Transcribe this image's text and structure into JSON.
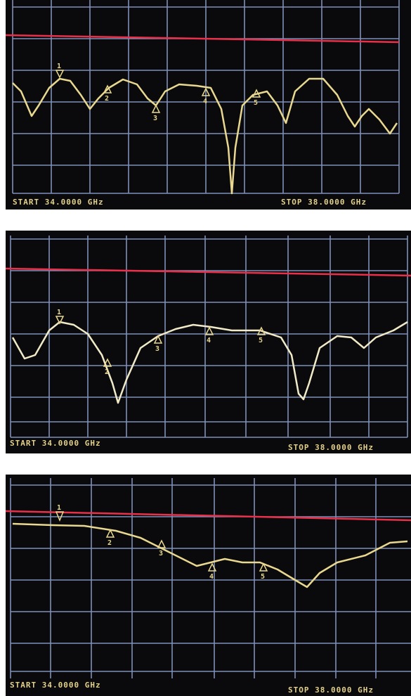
{
  "panels": [
    {
      "start": "START 34.0000 GHz",
      "stop": "STOP 38.0000 GHz",
      "markers": [
        "1",
        "2",
        "3",
        "4",
        "5"
      ]
    },
    {
      "start": "START 34.0000 GHz",
      "stop": "STOP 38.0000 GHz",
      "markers": [
        "1",
        "2",
        "3",
        "4",
        "5"
      ]
    },
    {
      "start": "START 34.0000 GHz",
      "stop": "STOP 38.0000 GHz",
      "markers": [
        "1",
        "2",
        "3",
        "4",
        "5"
      ]
    }
  ]
}
